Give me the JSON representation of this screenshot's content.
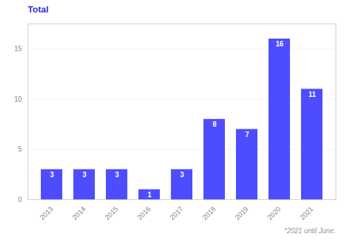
{
  "chart_data": {
    "type": "bar",
    "title": "Total",
    "categories": [
      "2013",
      "2014",
      "2015",
      "2016",
      "2017",
      "2018",
      "2019",
      "2020",
      "2021"
    ],
    "values": [
      3,
      3,
      3,
      1,
      3,
      8,
      7,
      16,
      11
    ],
    "color": "#4d4dff",
    "ylim": [
      0,
      17.5
    ],
    "yticks": [
      0,
      5,
      10,
      15
    ],
    "grid": true,
    "data_labels": true,
    "annotations": [
      "*2021 until June."
    ]
  }
}
